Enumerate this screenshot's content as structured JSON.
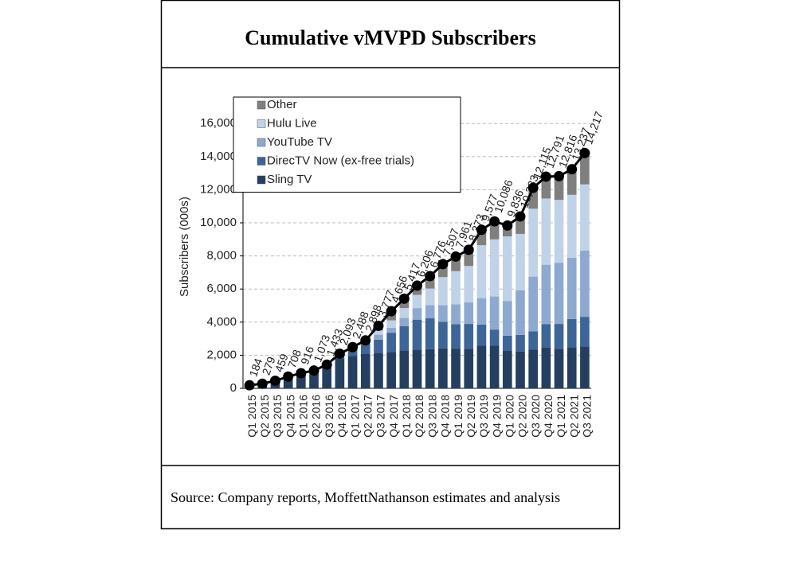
{
  "chart_data": {
    "type": "stacked-bar-line",
    "title": "Cumulative vMVPD Subscribers",
    "ylabel": "Subscribers (000s)",
    "source": "Source: Company reports, MoffettNathanson estimates and analysis",
    "legend": "upper left",
    "grid": true,
    "ylim": [
      0,
      17500
    ],
    "yticks": [
      0,
      {
        "value": 2000,
        "label": "2,000"
      },
      {
        "value": 4000,
        "label": "4,000"
      },
      {
        "value": 6000,
        "label": "6,000"
      },
      {
        "value": 8000,
        "label": "8,000"
      },
      {
        "value": 10000,
        "label": "10,000"
      },
      {
        "value": 12000,
        "label": "12,000"
      },
      {
        "value": 14000,
        "label": "14,000"
      },
      {
        "value": 16000,
        "label": "16,000"
      }
    ],
    "categories": [
      "Q1 2015",
      "Q2 2015",
      "Q3 2015",
      "Q4 2015",
      "Q1 2016",
      "Q2 2016",
      "Q3 2016",
      "Q4 2016",
      "Q1 2017",
      "Q2 2017",
      "Q3 2017",
      "Q4 2017",
      "Q1 2018",
      "Q2 2018",
      "Q3 2018",
      "Q4 2018",
      "Q1 2019",
      "Q2 2019",
      "Q3 2019",
      "Q4 2019",
      "Q1 2020",
      "Q2 2020",
      "Q3 2020",
      "Q4 2020",
      "Q1 2021",
      "Q2 2021",
      "Q3 2021"
    ],
    "series": [
      {
        "name": "Sling TV",
        "color": "#243f60",
        "values": [
          184,
          279,
          459,
          708,
          916,
          1073,
          1433,
          1800,
          1950,
          2100,
          2150,
          2200,
          2290,
          2340,
          2370,
          2420,
          2380,
          2390,
          2590,
          2590,
          2280,
          2230,
          2350,
          2470,
          2390,
          2490,
          2520
        ]
      },
      {
        "name": "DirecTV Now (ex-free trials)",
        "color": "#3d6597",
        "values": [
          0,
          0,
          0,
          0,
          0,
          0,
          0,
          267,
          491,
          600,
          790,
          1160,
          1460,
          1810,
          1860,
          1600,
          1500,
          1500,
          1260,
          960,
          900,
          1000,
          1100,
          1400,
          1500,
          1700,
          1800
        ]
      },
      {
        "name": "YouTube TV",
        "color": "#8ea9cf",
        "values": [
          0,
          0,
          0,
          0,
          0,
          0,
          0,
          0,
          0,
          100,
          300,
          300,
          500,
          700,
          800,
          1000,
          1200,
          1300,
          1600,
          2000,
          2100,
          2700,
          3300,
          3600,
          3700,
          3700,
          4000
        ]
      },
      {
        "name": "Hulu Live",
        "color": "#c0d2e8",
        "values": [
          0,
          0,
          0,
          0,
          0,
          0,
          0,
          0,
          0,
          50,
          250,
          450,
          600,
          800,
          1000,
          1700,
          2000,
          2200,
          3200,
          3450,
          3900,
          3400,
          4100,
          4000,
          3800,
          3800,
          4000
        ]
      },
      {
        "name": "Other",
        "color": "#7f7f7f",
        "values": [
          0,
          0,
          0,
          0,
          0,
          0,
          0,
          26,
          47,
          48,
          287,
          546,
          567,
          556,
          746,
          787,
          881,
          983,
          927,
          1086,
          656,
          1053,
          1265,
          1321,
          1426,
          1547,
          1897
        ]
      }
    ],
    "totals": {
      "color": "#000000",
      "values": [
        184,
        279,
        459,
        708,
        916,
        1073,
        1433,
        2093,
        2488,
        2898,
        3777,
        4656,
        5417,
        6206,
        6776,
        7507,
        7961,
        8373,
        9577,
        10086,
        9836,
        10383,
        12115,
        12791,
        12816,
        13237,
        14217
      ],
      "value_labels": [
        "184",
        "279",
        "459",
        "708",
        "916",
        "1,073",
        "1,433",
        "2,093",
        "2,488",
        "2,898",
        "3,777",
        "4,656",
        "5,417",
        "6,206",
        "6,776",
        "7,507",
        "7,961",
        "8,373",
        "9,577",
        "10,086",
        "9,836",
        "10,383",
        "12,115",
        "12,791",
        "12,816",
        "13,237",
        "14,217"
      ]
    }
  }
}
